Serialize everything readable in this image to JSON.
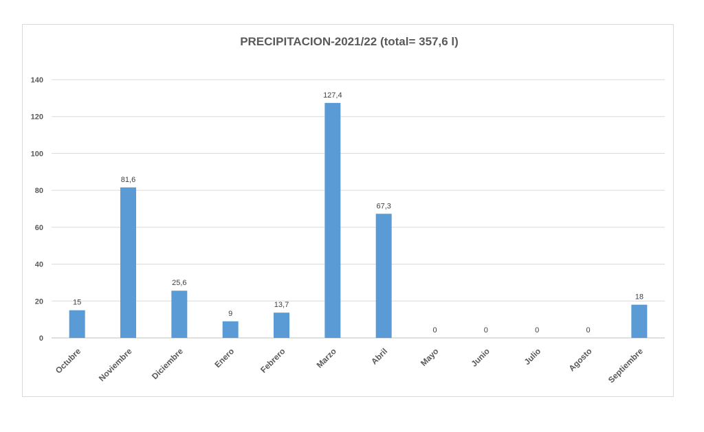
{
  "chart_data": {
    "type": "bar",
    "title": "PRECIPITACION-2021/22 (total= 357,6 l)",
    "categories": [
      "Octubre",
      "Noviembre",
      "Diciembre",
      "Enero",
      "Febrero",
      "Marzo",
      "Abril",
      "Mayo",
      "Junio",
      "Julio",
      "Agosto",
      "Septiembre"
    ],
    "values": [
      15,
      81.6,
      25.6,
      9,
      13.7,
      127.4,
      67.3,
      0,
      0,
      0,
      0,
      18
    ],
    "value_labels": [
      "15",
      "81,6",
      "25,6",
      "9",
      "13,7",
      "127,4",
      "67,3",
      "0",
      "0",
      "0",
      "0",
      "18"
    ],
    "ylim": [
      0,
      140
    ],
    "yticks": [
      0,
      20,
      40,
      60,
      80,
      100,
      120,
      140
    ],
    "grid": true,
    "legend": "none",
    "bar_color": "#5b9bd5"
  }
}
